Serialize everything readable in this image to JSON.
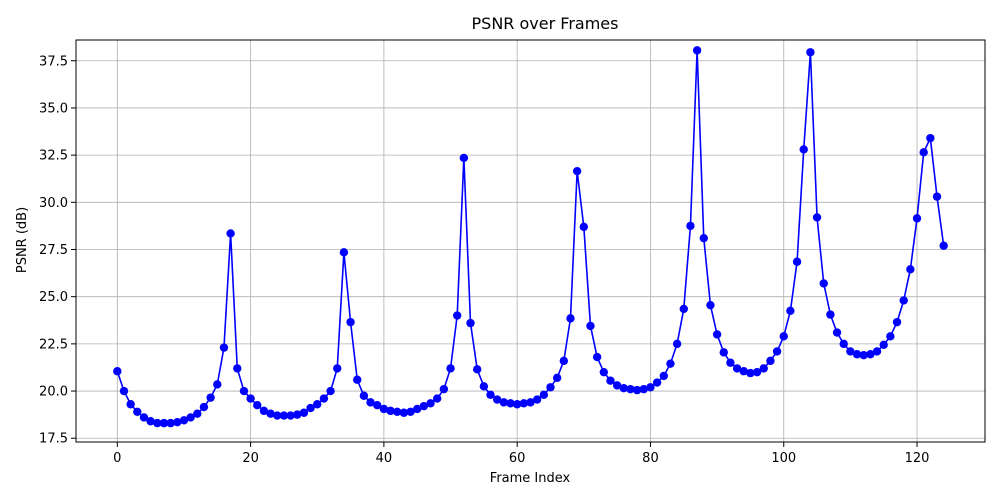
{
  "chart_data": {
    "type": "line",
    "title": "PSNR over Frames",
    "xlabel": "Frame Index",
    "ylabel": "PSNR (dB)",
    "xlim": [
      -6.2,
      130.2
    ],
    "ylim": [
      17.3,
      38.6
    ],
    "xticks": [
      0,
      20,
      40,
      60,
      80,
      100,
      120
    ],
    "xtick_labels": [
      "0",
      "20",
      "40",
      "60",
      "80",
      "100",
      "120"
    ],
    "yticks": [
      17.5,
      20.0,
      22.5,
      25.0,
      27.5,
      30.0,
      32.5,
      35.0,
      37.5
    ],
    "ytick_labels": [
      "17.5",
      "20.0",
      "22.5",
      "25.0",
      "27.5",
      "30.0",
      "32.5",
      "35.0",
      "37.5"
    ],
    "grid": true,
    "series": [
      {
        "color": "#0000ff",
        "marker": "circle",
        "x": [
          0,
          1,
          2,
          3,
          4,
          5,
          6,
          7,
          8,
          9,
          10,
          11,
          12,
          13,
          14,
          15,
          16,
          17,
          18,
          19,
          20,
          21,
          22,
          23,
          24,
          25,
          26,
          27,
          28,
          29,
          30,
          31,
          32,
          33,
          34,
          35,
          36,
          37,
          38,
          39,
          40,
          41,
          42,
          43,
          44,
          45,
          46,
          47,
          48,
          49,
          50,
          51,
          52,
          53,
          54,
          55,
          56,
          57,
          58,
          59,
          60,
          61,
          62,
          63,
          64,
          65,
          66,
          67,
          68,
          69,
          70,
          71,
          72,
          73,
          74,
          75,
          76,
          77,
          78,
          79,
          80,
          81,
          82,
          83,
          84,
          85,
          86,
          87,
          88,
          89,
          90,
          91,
          92,
          93,
          94,
          95,
          96,
          97,
          98,
          99,
          100,
          101,
          102,
          103,
          104,
          105,
          106,
          107,
          108,
          109,
          110,
          111,
          112,
          113,
          114,
          115,
          116,
          117,
          118,
          119,
          120,
          121,
          122,
          123,
          124
        ],
        "y": [
          21.05,
          20.0,
          19.3,
          18.9,
          18.6,
          18.4,
          18.3,
          18.3,
          18.3,
          18.35,
          18.45,
          18.6,
          18.8,
          19.15,
          19.65,
          20.35,
          22.3,
          28.35,
          21.2,
          20.0,
          19.6,
          19.25,
          18.95,
          18.8,
          18.7,
          18.7,
          18.7,
          18.75,
          18.85,
          19.1,
          19.3,
          19.6,
          20.0,
          21.2,
          27.35,
          23.65,
          20.6,
          19.75,
          19.4,
          19.25,
          19.05,
          18.95,
          18.9,
          18.85,
          18.9,
          19.05,
          19.2,
          19.35,
          19.6,
          20.1,
          21.2,
          24.0,
          32.35,
          23.6,
          21.15,
          20.25,
          19.8,
          19.55,
          19.4,
          19.35,
          19.3,
          19.35,
          19.4,
          19.55,
          19.8,
          20.2,
          20.7,
          21.6,
          23.85,
          31.65,
          28.7,
          23.45,
          21.8,
          21.0,
          20.55,
          20.3,
          20.15,
          20.1,
          20.05,
          20.1,
          20.2,
          20.45,
          20.8,
          21.45,
          22.5,
          24.35,
          28.75,
          38.05,
          28.1,
          24.55,
          23.0,
          22.05,
          21.5,
          21.2,
          21.05,
          20.95,
          21.0,
          21.2,
          21.6,
          22.1,
          22.9,
          24.25,
          26.85,
          32.8,
          37.95,
          29.2,
          25.7,
          24.05,
          23.1,
          22.5,
          22.1,
          21.95,
          21.9,
          21.95,
          22.1,
          22.45,
          22.9,
          23.65,
          24.8,
          26.45,
          29.15,
          32.65,
          33.4,
          30.3,
          27.7
        ]
      }
    ]
  }
}
